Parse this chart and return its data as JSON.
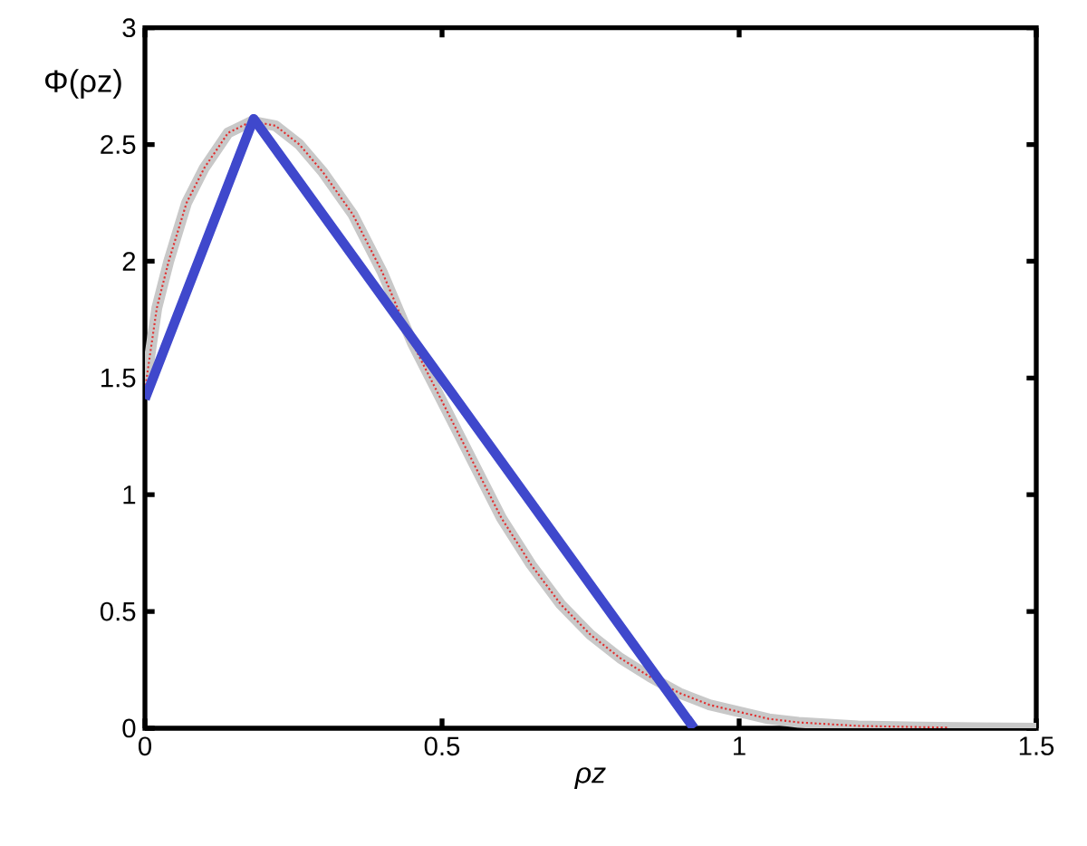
{
  "chart_data": {
    "type": "line",
    "xlabel": "ρz",
    "ylabel": "Φ(ρz)",
    "xlim": [
      0,
      1.5
    ],
    "ylim": [
      0,
      3
    ],
    "xticks": [
      0,
      0.5,
      1,
      1.5
    ],
    "yticks": [
      0,
      0.5,
      1,
      1.5,
      2,
      2.5,
      3
    ],
    "grid": false,
    "series": [
      {
        "color": "#c8c8c8",
        "line_style": "solid",
        "x": [
          0,
          0.02,
          0.04,
          0.07,
          0.1,
          0.14,
          0.18,
          0.22,
          0.26,
          0.3,
          0.35,
          0.4,
          0.45,
          0.5,
          0.55,
          0.6,
          0.65,
          0.7,
          0.75,
          0.8,
          0.85,
          0.9,
          0.95,
          1.0,
          1.05,
          1.1,
          1.2,
          1.3,
          1.4,
          1.5
        ],
        "values": [
          1.45,
          1.8,
          2.0,
          2.25,
          2.4,
          2.55,
          2.6,
          2.58,
          2.5,
          2.38,
          2.2,
          1.95,
          1.65,
          1.4,
          1.15,
          0.9,
          0.7,
          0.53,
          0.4,
          0.3,
          0.22,
          0.15,
          0.1,
          0.07,
          0.04,
          0.025,
          0.01,
          0.005,
          0.002,
          0
        ]
      },
      {
        "color": "#e03030",
        "line_style": "dotted",
        "x": [
          0,
          0.02,
          0.04,
          0.07,
          0.1,
          0.14,
          0.18,
          0.22,
          0.26,
          0.3,
          0.35,
          0.4,
          0.45,
          0.5,
          0.55,
          0.6,
          0.65,
          0.7,
          0.75,
          0.8,
          0.85,
          0.9,
          0.95,
          1.0,
          1.05,
          1.1,
          1.2,
          1.3,
          1.35
        ],
        "values": [
          1.45,
          1.8,
          2.0,
          2.25,
          2.4,
          2.55,
          2.6,
          2.58,
          2.5,
          2.38,
          2.2,
          1.95,
          1.65,
          1.4,
          1.15,
          0.9,
          0.7,
          0.53,
          0.4,
          0.3,
          0.22,
          0.15,
          0.1,
          0.07,
          0.04,
          0.025,
          0.01,
          0.005,
          0.003
        ]
      },
      {
        "color": "#3f48cc",
        "line_style": "solid",
        "x": [
          0,
          0.183,
          0.924
        ],
        "values": [
          1.41,
          2.61,
          0
        ]
      }
    ]
  }
}
